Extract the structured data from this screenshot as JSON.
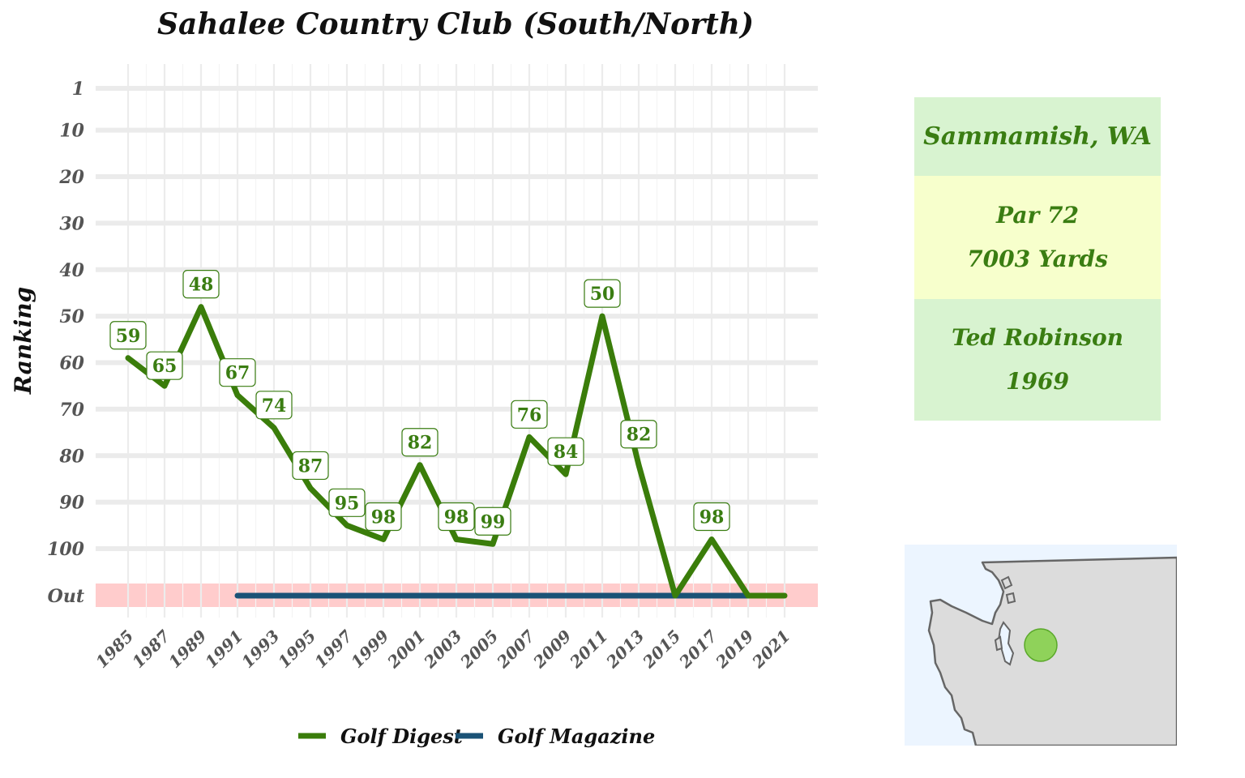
{
  "chart_data": {
    "type": "line",
    "title": "Sahalee Country Club (South/North)",
    "ylabel": "Ranking",
    "xlabel": "",
    "x_ticks": [
      "1985",
      "1987",
      "1989",
      "1991",
      "1993",
      "1995",
      "1997",
      "1999",
      "2001",
      "2003",
      "2005",
      "2007",
      "2009",
      "2011",
      "2013",
      "2015",
      "2017",
      "2019",
      "2021"
    ],
    "y_ticks": [
      "1",
      "10",
      "20",
      "30",
      "40",
      "50",
      "60",
      "70",
      "80",
      "90",
      "100",
      "Out"
    ],
    "y_reversed": true,
    "out_band_color": "#ffcccc",
    "grid": true,
    "legend_position": "bottom",
    "series": [
      {
        "name": "Golf Digest",
        "color": "#3a7d0a",
        "x": [
          1985,
          1987,
          1989,
          1991,
          1993,
          1995,
          1997,
          1999,
          2001,
          2003,
          2005,
          2007,
          2009,
          2011,
          2013,
          2015,
          2017,
          2019,
          2021
        ],
        "values": [
          59,
          65,
          48,
          67,
          74,
          87,
          95,
          98,
          82,
          98,
          99,
          76,
          84,
          50,
          82,
          "Out",
          98,
          "Out",
          "Out"
        ],
        "labels": [
          "59",
          "65",
          "48",
          "67",
          "74",
          "87",
          "95",
          "98",
          "82",
          "98",
          "99",
          "76",
          "84",
          "50",
          "82",
          "",
          "98",
          "",
          ""
        ]
      },
      {
        "name": "Golf Magazine",
        "color": "#1a5276",
        "x": [
          1991,
          2019
        ],
        "values": [
          "Out",
          "Out"
        ]
      }
    ]
  },
  "info": {
    "location": "Sammamish, WA",
    "par": "Par 72",
    "yards": "7003 Yards",
    "architect": "Ted Robinson",
    "year": "1969",
    "location_color": "#d8f3d0",
    "course_color": "#f7ffcc",
    "architect_color": "#d8f3d0"
  },
  "map": {
    "region": "Washington",
    "marker_color": "#7ccf3a"
  }
}
